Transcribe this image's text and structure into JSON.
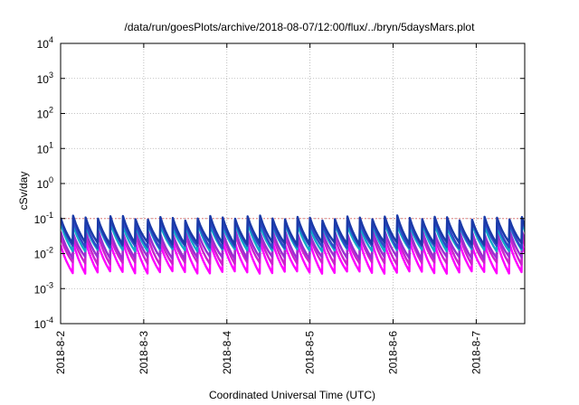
{
  "chart_data": {
    "type": "line",
    "title": "/data/run/goesPlots/archive/2018-08-07/12:00/flux/../bryn/5daysMars.plot",
    "xlabel": "Coordinated Universal Time (UTC)",
    "ylabel": "cSv/day",
    "y_scale": "log",
    "ylim": [
      0.0001,
      10000
    ],
    "y_ticks": [
      {
        "base": "10",
        "exp": "-4"
      },
      {
        "base": "10",
        "exp": "-3"
      },
      {
        "base": "10",
        "exp": "-2"
      },
      {
        "base": "10",
        "exp": "-1"
      },
      {
        "base": "10",
        "exp": "0"
      },
      {
        "base": "10",
        "exp": "1"
      },
      {
        "base": "10",
        "exp": "2"
      },
      {
        "base": "10",
        "exp": "3"
      },
      {
        "base": "10",
        "exp": "4"
      }
    ],
    "x_range": [
      "2018-08-02",
      "2018-08-07 14:00"
    ],
    "x_ticks": [
      "2018-8-2",
      "2018-8-3",
      "2018-8-4",
      "2018-8-5",
      "2018-8-6",
      "2018-8-7"
    ],
    "grid": true,
    "reference_line": {
      "value": 0.1,
      "color": "#e08080"
    },
    "series_period_hours": 3.6,
    "series": [
      {
        "color": "#1a3aa8",
        "peak": 0.105,
        "trough": 0.0195
      },
      {
        "color": "#2f47c8",
        "peak": 0.085,
        "trough": 0.0155
      },
      {
        "color": "#11a8c8",
        "peak": 0.068,
        "trough": 0.0125
      },
      {
        "color": "#9a2fd0",
        "peak": 0.042,
        "trough": 0.0075
      },
      {
        "color": "#cc22cc",
        "peak": 0.032,
        "trough": 0.0052
      },
      {
        "color": "#ff00ff",
        "peak": 0.02,
        "trough": 0.0029
      }
    ]
  }
}
